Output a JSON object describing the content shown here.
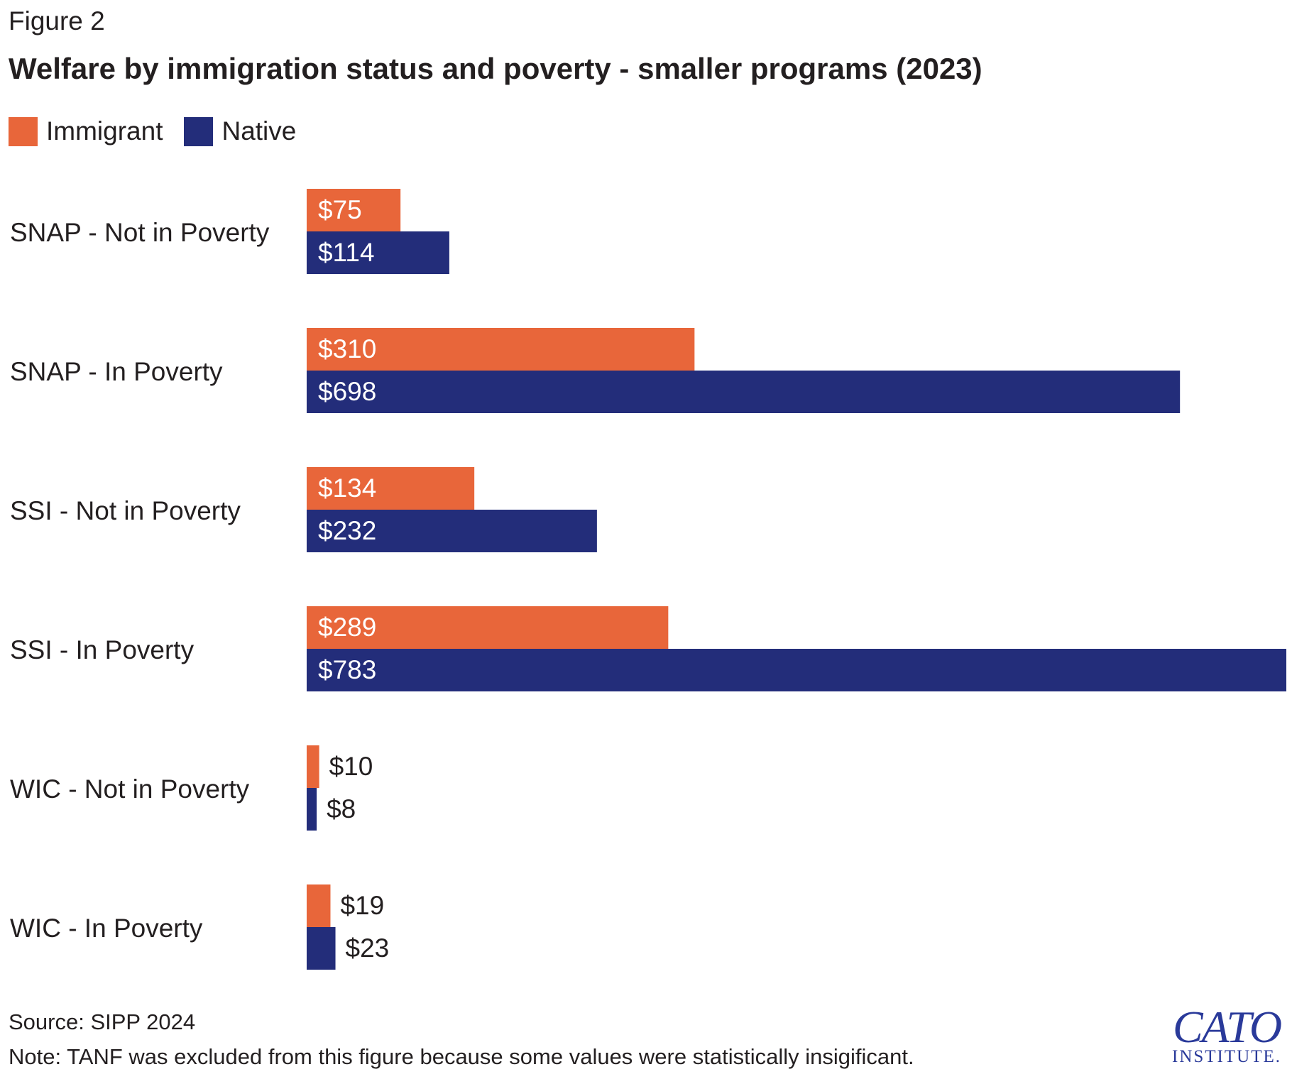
{
  "figure_label": "Figure 2",
  "logo": {
    "main": "CATO",
    "sub": "INSTITUTE."
  },
  "colors": {
    "immigrant": "#e8663a",
    "native": "#232d7a",
    "text": "#231f20",
    "bar_label_inside": "#ffffff"
  },
  "chart_data": {
    "type": "bar",
    "orientation": "horizontal",
    "title": "Welfare by immigration status and poverty - smaller programs (2023)",
    "categories": [
      "SNAP - Not in Poverty",
      "SNAP - In Poverty",
      "SSI - Not in Poverty",
      "SSI - In Poverty",
      "WIC - Not in Poverty",
      "WIC - In Poverty"
    ],
    "series": [
      {
        "name": "Immigrant",
        "values": [
          75,
          310,
          134,
          289,
          10,
          19
        ],
        "labels": [
          "$75",
          "$310",
          "$134",
          "$289",
          "$10",
          "$19"
        ]
      },
      {
        "name": "Native",
        "values": [
          114,
          698,
          232,
          783,
          8,
          23
        ],
        "labels": [
          "$114",
          "$698",
          "$232",
          "$783",
          "$8",
          "$23"
        ]
      }
    ],
    "xlim": [
      0,
      783
    ],
    "xlabel": "",
    "ylabel": "",
    "grid": false,
    "legend": "top-left",
    "source": "Source: SIPP 2024",
    "note": "Note: TANF was excluded from this figure because some values were statistically insigificant."
  }
}
